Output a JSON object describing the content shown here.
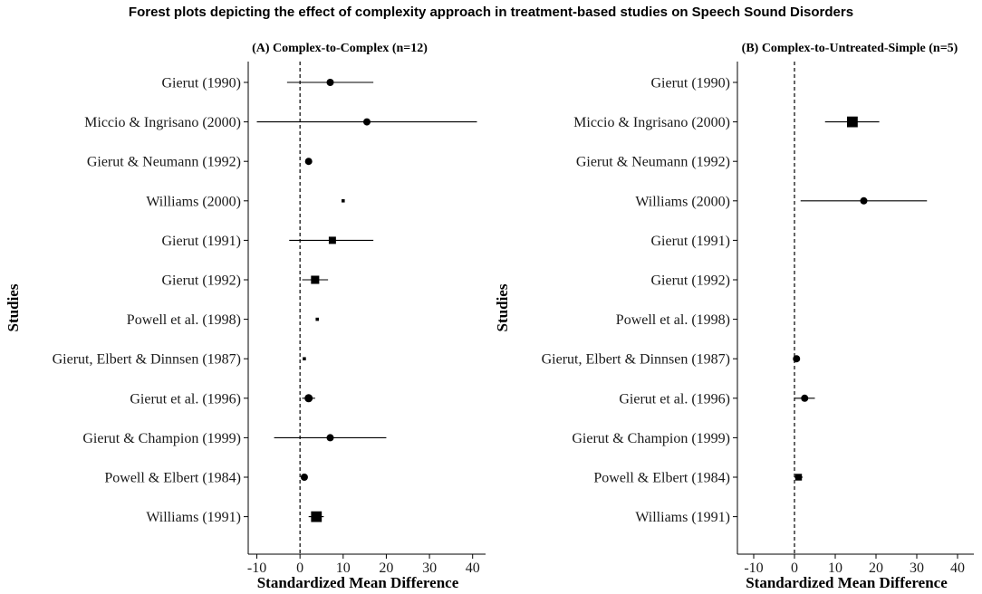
{
  "title": "Forest plots depicting the effect of complexity approach in treatment-based studies on Speech Sound Disorders",
  "chart_data": [
    {
      "type": "forest",
      "panel_title": "(A) Complex-to-Complex (n=12)",
      "xlabel": "Standardized Mean Difference",
      "ylabel": "Studies",
      "xlim": [
        -12,
        43
      ],
      "xticks": [
        -10,
        0,
        10,
        20,
        30,
        40
      ],
      "reference_x": 0,
      "studies": [
        {
          "label": "Gierut (1990)",
          "estimate": 7.0,
          "ci_low": -3.0,
          "ci_high": 17.0,
          "marker": "circle",
          "weight": 0.25
        },
        {
          "label": "Miccio & Ingrisano (2000)",
          "estimate": 15.5,
          "ci_low": -10.0,
          "ci_high": 41.0,
          "marker": "circle",
          "weight": 0.25
        },
        {
          "label": "Gierut & Neumann (1992)",
          "estimate": 2.0,
          "ci_low": 2.0,
          "ci_high": 2.0,
          "marker": "circle",
          "weight": 0.25
        },
        {
          "label": "Williams (2000)",
          "estimate": 10.0,
          "ci_low": 10.0,
          "ci_high": 10.0,
          "marker": "square",
          "weight": 0.05
        },
        {
          "label": "Gierut (1991)",
          "estimate": 7.5,
          "ci_low": -2.5,
          "ci_high": 17.0,
          "marker": "square",
          "weight": 0.45
        },
        {
          "label": "Gierut (1992)",
          "estimate": 3.5,
          "ci_low": 0.5,
          "ci_high": 6.5,
          "marker": "square",
          "weight": 0.55
        },
        {
          "label": "Powell et al. (1998)",
          "estimate": 4.0,
          "ci_low": 4.0,
          "ci_high": 4.0,
          "marker": "square",
          "weight": 0.05
        },
        {
          "label": "Gierut, Elbert & Dinnsen (1987)",
          "estimate": 1.0,
          "ci_low": 1.0,
          "ci_high": 1.0,
          "marker": "square",
          "weight": 0.05
        },
        {
          "label": "Gierut et al. (1996)",
          "estimate": 2.0,
          "ci_low": 0.5,
          "ci_high": 3.5,
          "marker": "circle",
          "weight": 0.3
        },
        {
          "label": "Gierut & Champion (1999)",
          "estimate": 7.0,
          "ci_low": -6.0,
          "ci_high": 20.0,
          "marker": "circle",
          "weight": 0.25
        },
        {
          "label": "Powell & Elbert (1984)",
          "estimate": 1.0,
          "ci_low": 1.0,
          "ci_high": 1.0,
          "marker": "circle",
          "weight": 0.25
        },
        {
          "label": "Williams (1991)",
          "estimate": 3.8,
          "ci_low": 2.0,
          "ci_high": 5.5,
          "marker": "square",
          "weight": 0.8
        }
      ]
    },
    {
      "type": "forest",
      "panel_title": "(B) Complex-to-Untreated-Simple (n=5)",
      "xlabel": "Standardized Mean Difference",
      "ylabel": "Studies",
      "xlim": [
        -14,
        44
      ],
      "xticks": [
        -10,
        0,
        10,
        20,
        30,
        40
      ],
      "reference_x": 0,
      "studies": [
        {
          "label": "Gierut (1990)",
          "estimate": null,
          "ci_low": null,
          "ci_high": null,
          "marker": "none",
          "weight": 0
        },
        {
          "label": "Miccio & Ingrisano (2000)",
          "estimate": 14.2,
          "ci_low": 7.5,
          "ci_high": 20.8,
          "marker": "square",
          "weight": 0.8
        },
        {
          "label": "Gierut & Neumann (1992)",
          "estimate": null,
          "ci_low": null,
          "ci_high": null,
          "marker": "none",
          "weight": 0
        },
        {
          "label": "Williams (2000)",
          "estimate": 17.0,
          "ci_low": 1.5,
          "ci_high": 32.5,
          "marker": "circle",
          "weight": 0.25
        },
        {
          "label": "Gierut (1991)",
          "estimate": null,
          "ci_low": null,
          "ci_high": null,
          "marker": "none",
          "weight": 0
        },
        {
          "label": "Gierut (1992)",
          "estimate": null,
          "ci_low": null,
          "ci_high": null,
          "marker": "none",
          "weight": 0
        },
        {
          "label": "Powell et al. (1998)",
          "estimate": null,
          "ci_low": null,
          "ci_high": null,
          "marker": "none",
          "weight": 0
        },
        {
          "label": "Gierut, Elbert & Dinnsen (1987)",
          "estimate": 0.5,
          "ci_low": 0.5,
          "ci_high": 0.5,
          "marker": "circle",
          "weight": 0.25
        },
        {
          "label": "Gierut et al. (1996)",
          "estimate": 2.5,
          "ci_low": 0.0,
          "ci_high": 5.0,
          "marker": "circle",
          "weight": 0.25
        },
        {
          "label": "Gierut & Champion (1999)",
          "estimate": null,
          "ci_low": null,
          "ci_high": null,
          "marker": "none",
          "weight": 0
        },
        {
          "label": "Powell & Elbert (1984)",
          "estimate": 1.0,
          "ci_low": 0.0,
          "ci_high": 2.0,
          "marker": "square",
          "weight": 0.4
        },
        {
          "label": "Williams (1991)",
          "estimate": null,
          "ci_low": null,
          "ci_high": null,
          "marker": "none",
          "weight": 0
        }
      ]
    }
  ]
}
